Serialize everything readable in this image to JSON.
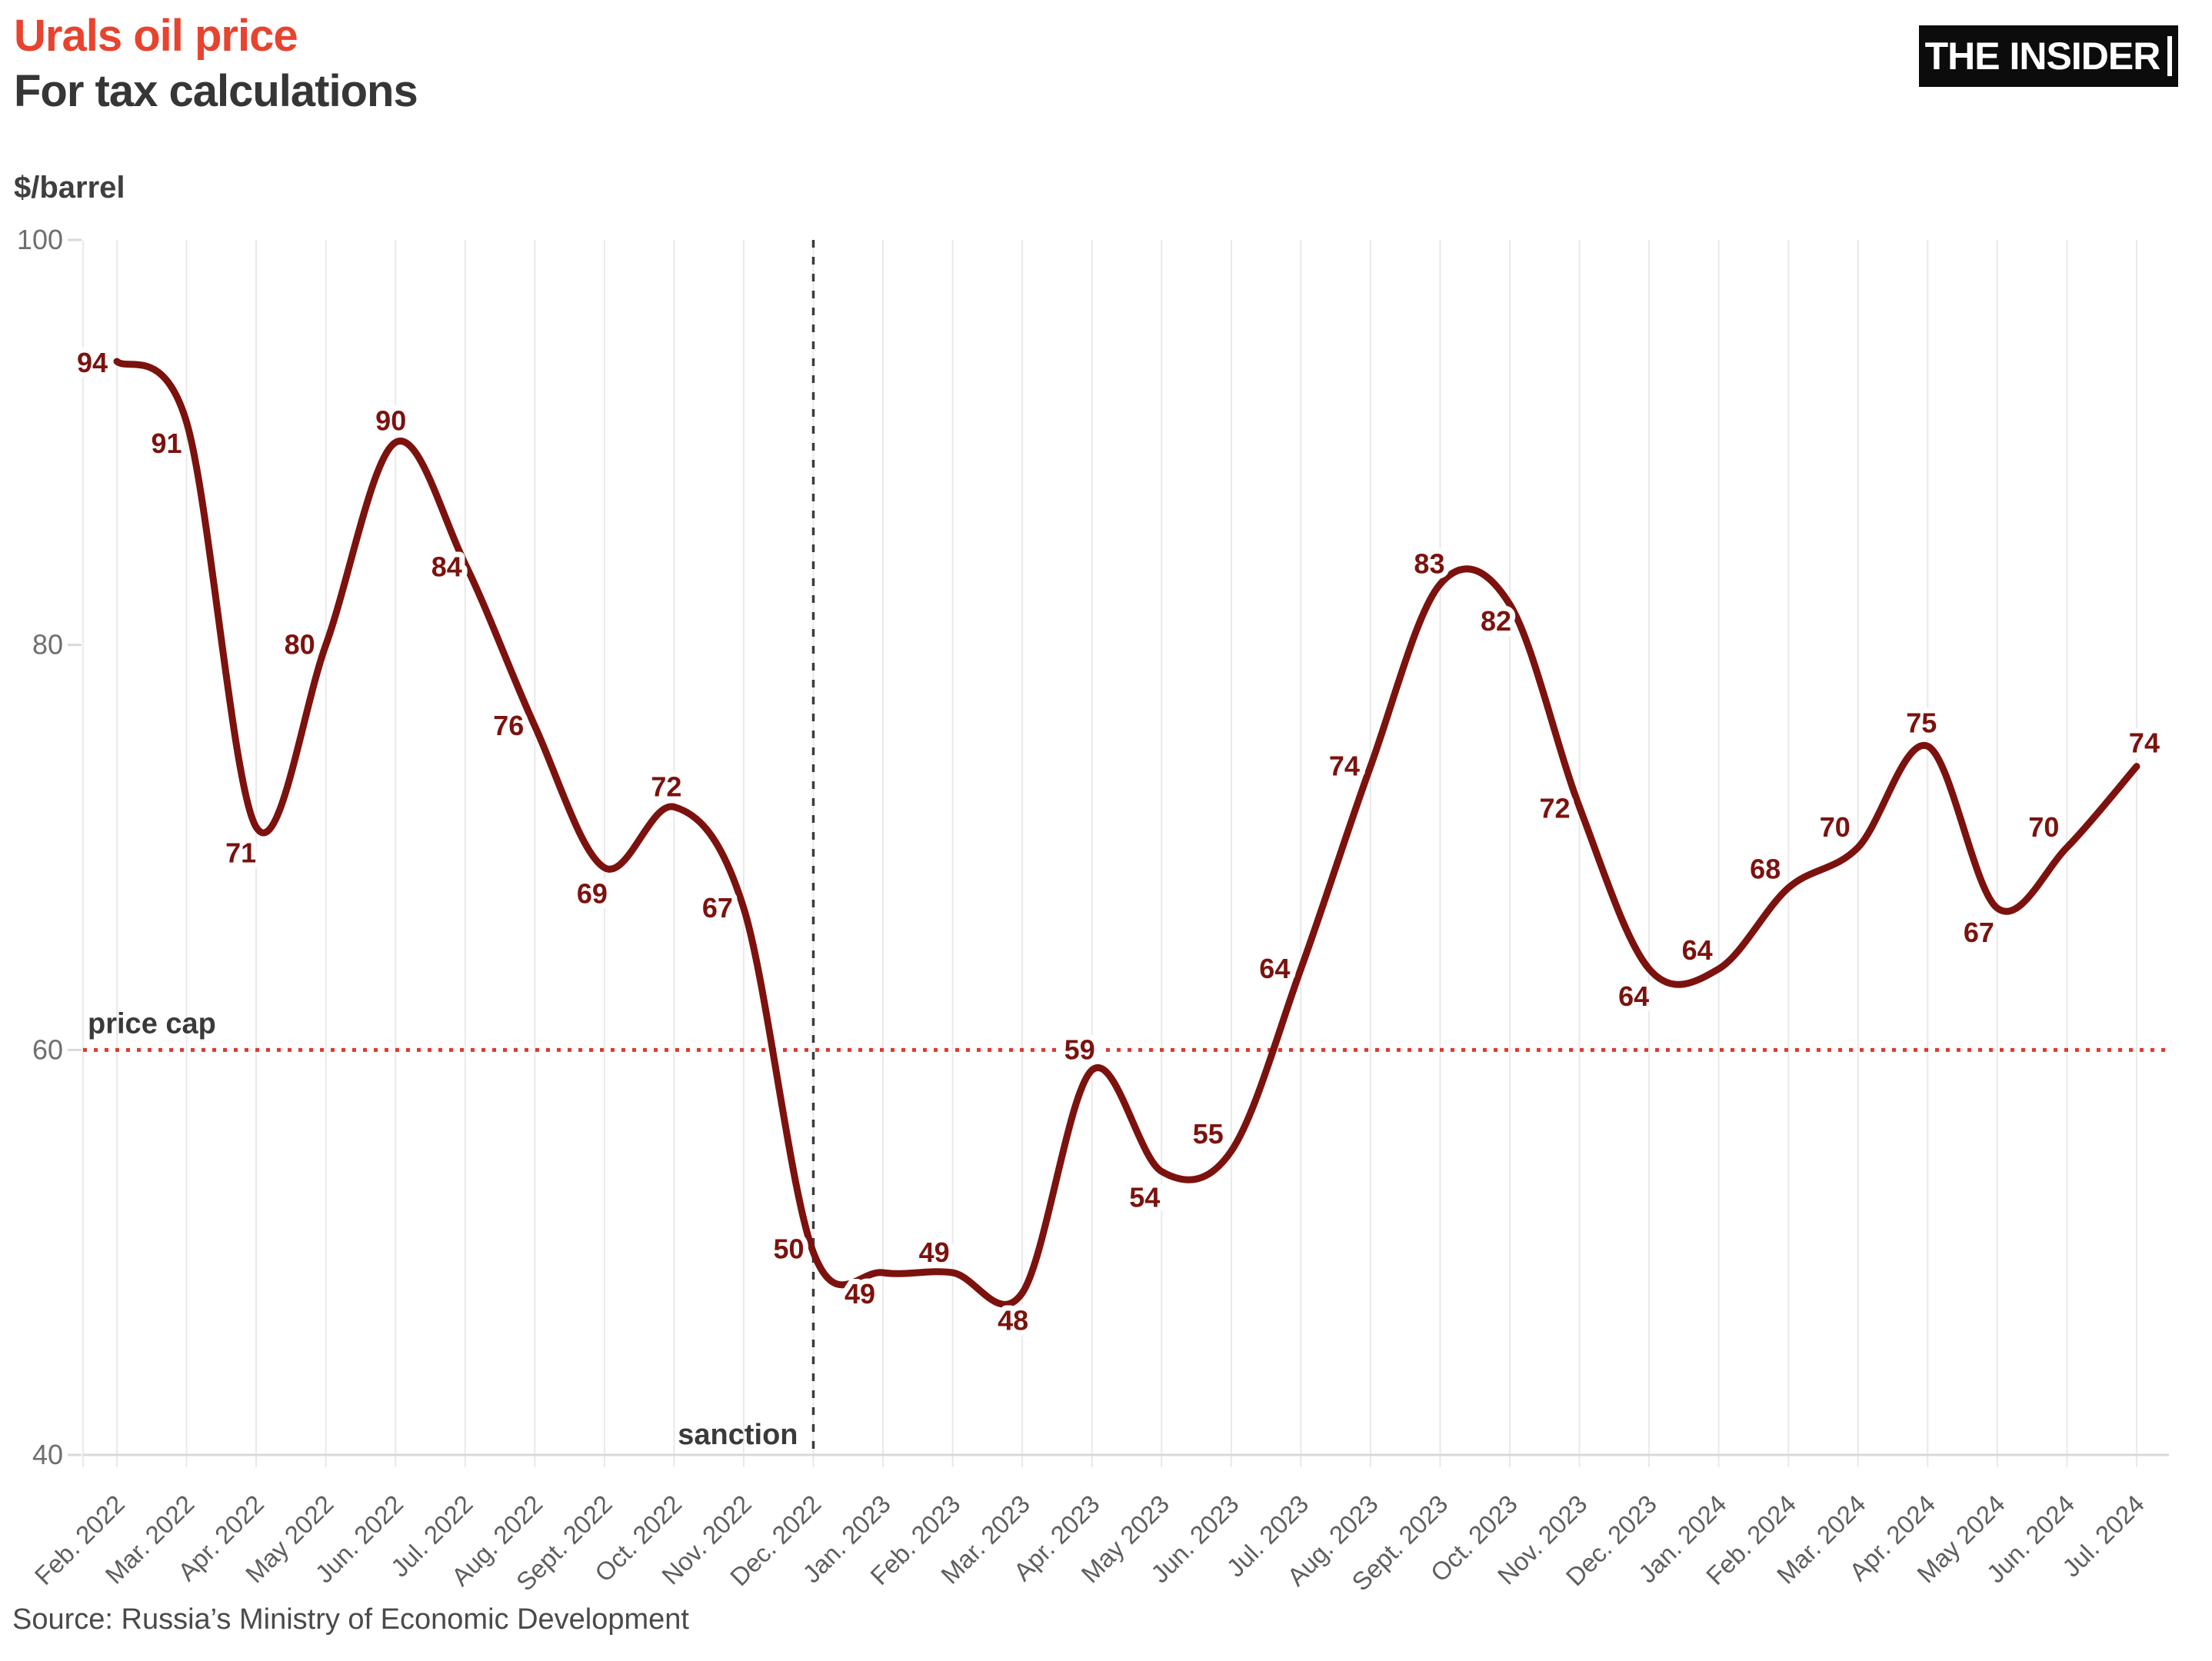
{
  "header": {
    "title": "Urals oil price",
    "subtitle": "For tax calculations",
    "logo_text": "THE INSIDER"
  },
  "chart": {
    "unit_label": "$/barrel",
    "price_cap": {
      "label": "price cap",
      "value": 60
    },
    "sanction": {
      "label": "sanction",
      "month": "Dec. 2022"
    },
    "colors": {
      "line": "#7c120e",
      "title_red": "#e8432e",
      "price_cap_line": "#dd3b2d",
      "sanction_line": "#3c3c3c",
      "grid": "#e9e9e9",
      "axis": "#d9d9d9",
      "tick_text": "#6e6e6e",
      "dark_text": "#3a3a3a"
    }
  },
  "chart_data": {
    "type": "line",
    "title": "Urals oil price",
    "subtitle": "For tax calculations",
    "ylabel": "$/barrel",
    "categories": [
      "Feb. 2022",
      "Mar. 2022",
      "Apr. 2022",
      "May 2022",
      "Jun. 2022",
      "Jul. 2022",
      "Aug. 2022",
      "Sept. 2022",
      "Oct. 2022",
      "Nov. 2022",
      "Dec. 2022",
      "Jan. 2023",
      "Feb. 2023",
      "Mar. 2023",
      "Apr. 2023",
      "May 2023",
      "Jun. 2023",
      "Jul. 2023",
      "Aug. 2023",
      "Sept. 2023",
      "Oct. 2023",
      "Nov. 2023",
      "Dec. 2023",
      "Jan. 2024",
      "Feb. 2024",
      "Mar. 2024",
      "Apr. 2024",
      "May 2024",
      "Jun. 2024",
      "Jul. 2024"
    ],
    "values": [
      94,
      91,
      71,
      80,
      90,
      84,
      76,
      69,
      72,
      67,
      50,
      49,
      49,
      48,
      59,
      54,
      55,
      64,
      74,
      83,
      82,
      72,
      64,
      64,
      68,
      70,
      75,
      67,
      70,
      74
    ],
    "ylim": [
      40,
      100
    ],
    "yticks": [
      100,
      80,
      60,
      40
    ],
    "grid": "vertical monthly gridlines",
    "legend": "none",
    "annotations": [
      {
        "type": "hline",
        "y": 60,
        "label": "price cap"
      },
      {
        "type": "vline",
        "x": "Dec. 2022",
        "label": "sanction"
      }
    ]
  },
  "footer": {
    "source": "Source: Russia’s Ministry of Economic Development"
  }
}
